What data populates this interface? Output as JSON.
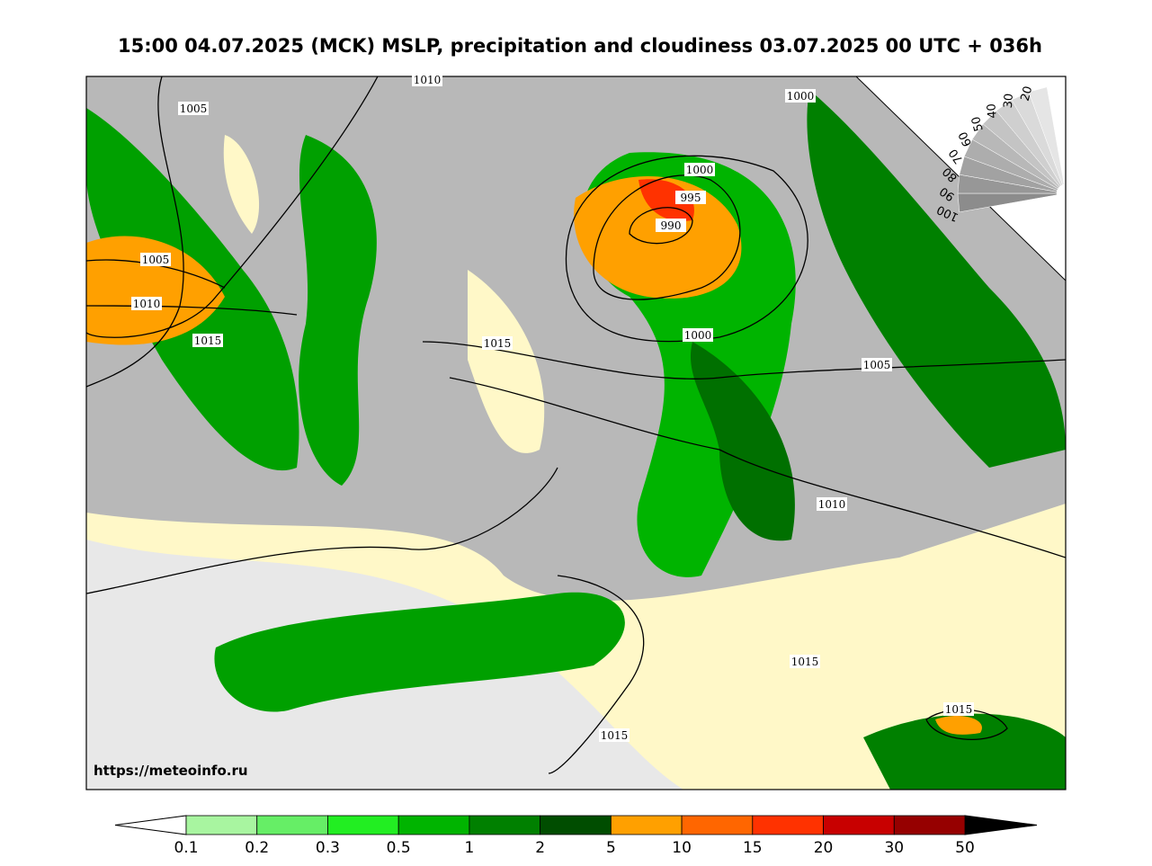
{
  "title": "15:00 04.07.2025 (MCK) MSLP, precipitation and cloudiness 03.07.2025 00 UTC + 036h",
  "watermark": "https://meteoinfo.ru",
  "isobar_labels": [
    "1010",
    "1005",
    "1000",
    "1000",
    "995",
    "990",
    "1005",
    "1010",
    "1015",
    "1015",
    "1000",
    "1005",
    "1010",
    "1015",
    "1015",
    "1015"
  ],
  "colorbar": {
    "labels": [
      "0.1",
      "0.2",
      "0.3",
      "0.5",
      "1",
      "2",
      "5",
      "10",
      "15",
      "20",
      "30",
      "50"
    ],
    "colors": [
      "#a8f5a0",
      "#66ee66",
      "#22ee22",
      "#00b400",
      "#008000",
      "#004d00",
      "#ffa000",
      "#ff6600",
      "#ff3200",
      "#c80000",
      "#960000"
    ]
  },
  "cloudiness_scale": {
    "labels": [
      "100",
      "90",
      "80",
      "70",
      "60",
      "50",
      "40",
      "30",
      "20"
    ]
  }
}
